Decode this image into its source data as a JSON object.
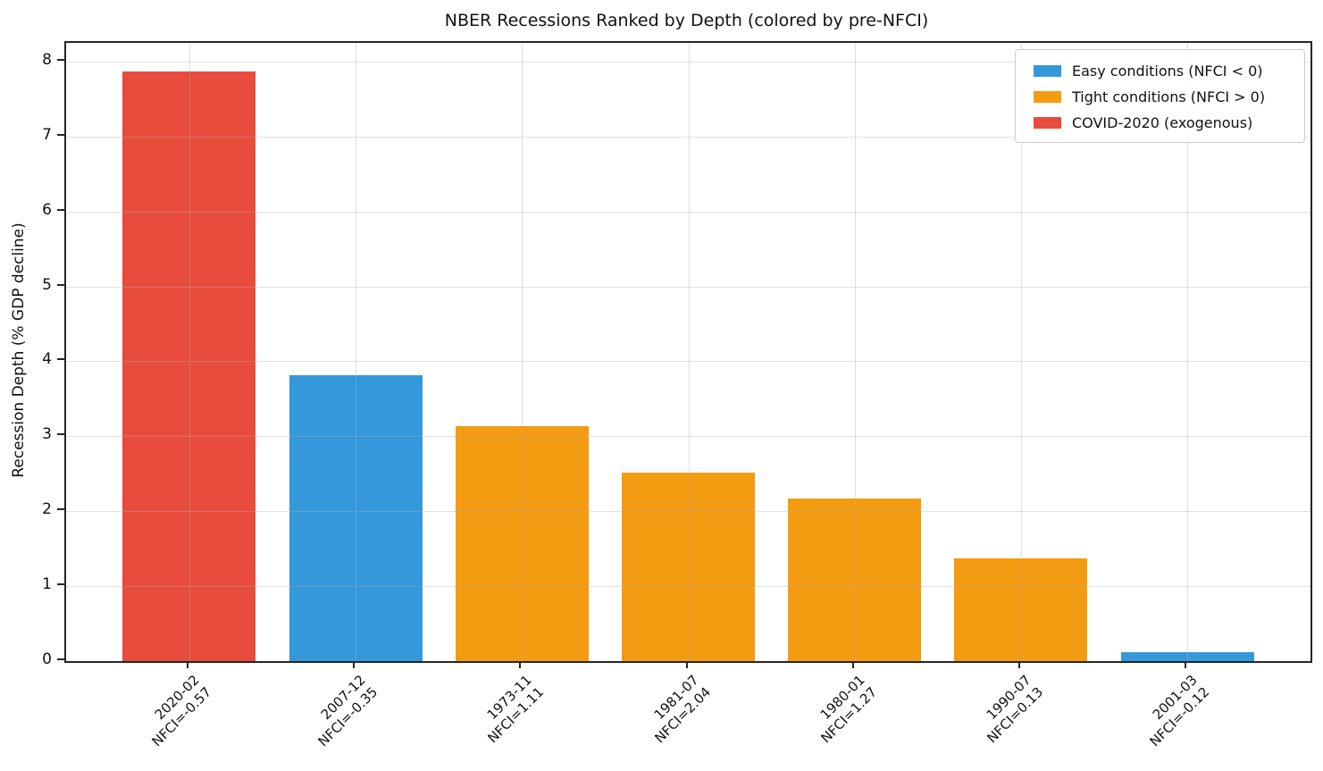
{
  "chart_data": {
    "type": "bar",
    "title": "NBER Recessions Ranked by Depth (colored by pre-NFCI)",
    "xlabel": "",
    "ylabel": "Recession Depth (% GDP decline)",
    "ylim": [
      0,
      8.25
    ],
    "yticks": [
      0,
      1,
      2,
      3,
      4,
      5,
      6,
      7,
      8
    ],
    "grid": true,
    "legend_position": "upper right",
    "colors": {
      "easy": "#3498db",
      "tight": "#f39c12",
      "covid": "#e74c3c",
      "spine": "#262626",
      "gridline": "#b0b0b0"
    },
    "bars": [
      {
        "label": "2020-02",
        "sublabel": "NFCI=-0.57",
        "value": 7.87,
        "group": "covid"
      },
      {
        "label": "2007-12",
        "sublabel": "NFCI=-0.35",
        "value": 3.81,
        "group": "easy"
      },
      {
        "label": "1973-11",
        "sublabel": "NFCI=1.11",
        "value": 3.13,
        "group": "tight"
      },
      {
        "label": "1981-07",
        "sublabel": "NFCI=2.04",
        "value": 2.51,
        "group": "tight"
      },
      {
        "label": "1980-01",
        "sublabel": "NFCI=1.27",
        "value": 2.17,
        "group": "tight"
      },
      {
        "label": "1990-07",
        "sublabel": "NFCI=0.13",
        "value": 1.37,
        "group": "tight"
      },
      {
        "label": "2001-03",
        "sublabel": "NFCI=-0.12",
        "value": 0.12,
        "group": "easy"
      }
    ],
    "legend": [
      {
        "label": "Easy conditions (NFCI < 0)",
        "group": "easy"
      },
      {
        "label": "Tight conditions (NFCI > 0)",
        "group": "tight"
      },
      {
        "label": "COVID-2020 (exogenous)",
        "group": "covid"
      }
    ]
  }
}
